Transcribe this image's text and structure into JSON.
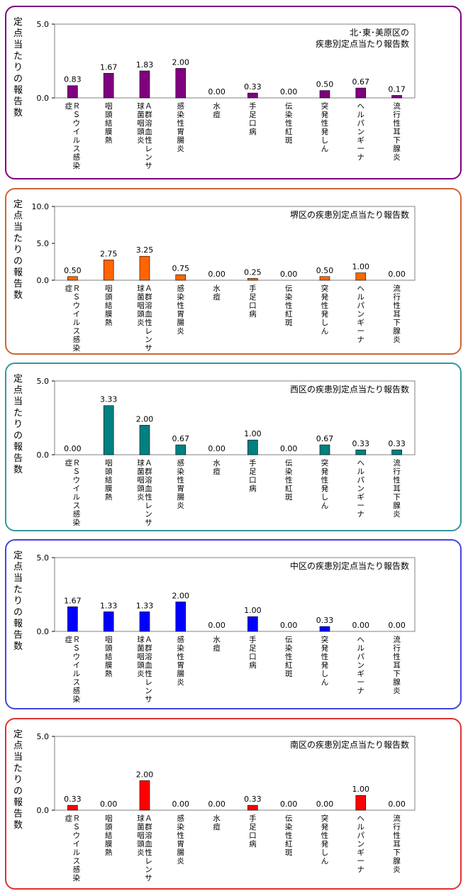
{
  "y_axis_label": "定点当たりの報告数",
  "categories": [
    [
      "Ｒ",
      "Ｓ",
      "ウ",
      "イ",
      "ル",
      "ス",
      "感",
      "染",
      "症"
    ],
    [
      "咽",
      "頭",
      "結",
      "膜",
      "熱"
    ],
    [
      "Ａ",
      "群",
      "溶",
      "血",
      "性",
      "レ",
      "ン",
      "サ",
      "球",
      "菌",
      "咽",
      "頭",
      "炎"
    ],
    [
      "感",
      "染",
      "性",
      "胃",
      "腸",
      "炎"
    ],
    [
      "水",
      "痘"
    ],
    [
      "手",
      "足",
      "口",
      "病"
    ],
    [
      "伝",
      "染",
      "性",
      "紅",
      "斑"
    ],
    [
      "突",
      "発",
      "性",
      "発",
      "し",
      "ん"
    ],
    [
      "ヘ",
      "ル",
      "パ",
      "ン",
      "ギ",
      "ー",
      "ナ"
    ],
    [
      "流",
      "行",
      "性",
      "耳",
      "下",
      "腺",
      "炎"
    ]
  ],
  "chart_data": [
    {
      "type": "bar",
      "title": [
        "北･東･美原区の",
        "疾患別定点当たり報告数"
      ],
      "ylabel": "定点当たりの報告数",
      "ylim": [
        0,
        5
      ],
      "y_ticks": [
        "0.0",
        "5.0"
      ],
      "color": "#800080",
      "border_color": "#800080",
      "values": [
        0.83,
        1.67,
        1.83,
        2.0,
        0.0,
        0.33,
        0.0,
        0.5,
        0.67,
        0.17
      ],
      "labels": [
        "0.83",
        "1.67",
        "1.83",
        "2.00",
        "0.00",
        "0.33",
        "0.00",
        "0.50",
        "0.67",
        "0.17"
      ]
    },
    {
      "type": "bar",
      "title": [
        "堺区の疾患別定点当たり報告数"
      ],
      "ylabel": "定点当たりの報告数",
      "ylim": [
        0,
        10
      ],
      "y_ticks": [
        "0.0",
        "5.0",
        "10.0"
      ],
      "color": "#ff6600",
      "border_color": "#cc6633",
      "values": [
        0.5,
        2.75,
        3.25,
        0.75,
        0.0,
        0.25,
        0.0,
        0.5,
        1.0,
        0.0
      ],
      "labels": [
        "0.50",
        "2.75",
        "3.25",
        "0.75",
        "0.00",
        "0.25",
        "0.00",
        "0.50",
        "1.00",
        "0.00"
      ]
    },
    {
      "type": "bar",
      "title": [
        "西区の疾患別定点当たり報告数"
      ],
      "ylabel": "定点当たりの報告数",
      "ylim": [
        0,
        5
      ],
      "y_ticks": [
        "0.0",
        "5.0"
      ],
      "color": "#008080",
      "border_color": "#339999",
      "values": [
        0.0,
        3.33,
        2.0,
        0.67,
        0.0,
        1.0,
        0.0,
        0.67,
        0.33,
        0.33
      ],
      "labels": [
        "0.00",
        "3.33",
        "2.00",
        "0.67",
        "0.00",
        "1.00",
        "0.00",
        "0.67",
        "0.33",
        "0.33"
      ]
    },
    {
      "type": "bar",
      "title": [
        "中区の疾患別定点当たり報告数"
      ],
      "ylabel": "定点当たりの報告数",
      "ylim": [
        0,
        5
      ],
      "y_ticks": [
        "0.0",
        "5.0"
      ],
      "color": "#0000ff",
      "border_color": "#4444dd",
      "values": [
        1.67,
        1.33,
        1.33,
        2.0,
        0.0,
        1.0,
        0.0,
        0.33,
        0.0,
        0.0
      ],
      "labels": [
        "1.67",
        "1.33",
        "1.33",
        "2.00",
        "0.00",
        "1.00",
        "0.00",
        "0.33",
        "0.00",
        "0.00"
      ]
    },
    {
      "type": "bar",
      "title": [
        "南区の疾患別定点当たり報告数"
      ],
      "ylabel": "定点当たりの報告数",
      "ylim": [
        0,
        5
      ],
      "y_ticks": [
        "0.0",
        "5.0"
      ],
      "color": "#ff0000",
      "border_color": "#dd3333",
      "values": [
        0.33,
        0.0,
        2.0,
        0.0,
        0.0,
        0.33,
        0.0,
        0.0,
        1.0,
        0.0
      ],
      "labels": [
        "0.33",
        "0.00",
        "2.00",
        "0.00",
        "0.00",
        "0.33",
        "0.00",
        "0.00",
        "1.00",
        "0.00"
      ]
    }
  ]
}
